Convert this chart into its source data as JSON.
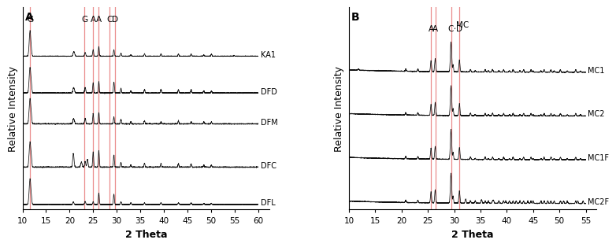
{
  "panel_A": {
    "label": "A",
    "x_min": 10,
    "x_max": 60,
    "xlabel": "2 Theta",
    "ylabel": "Relative Intensity",
    "vlines_A": [
      11.6,
      23.2,
      25.0,
      26.2,
      28.4,
      29.6
    ],
    "vline_labels_A": [
      "G",
      "G",
      "A",
      "A",
      "C",
      "D"
    ],
    "samples": [
      "KA1",
      "DFD",
      "DFM",
      "DFC",
      "DFL"
    ],
    "offsets": [
      4.8,
      3.6,
      2.6,
      1.2,
      0.0
    ],
    "xticks": [
      10,
      15,
      20,
      25,
      30,
      35,
      40,
      45,
      50,
      55,
      60
    ]
  },
  "panel_B": {
    "label": "B",
    "x_min": 10,
    "x_max": 55,
    "xlabel": "2 Theta",
    "ylabel": "Relative Intensity",
    "vlines_B": [
      25.6,
      26.4,
      29.4,
      31.0
    ],
    "vline_labels_B": [
      "A",
      "A",
      "C",
      "D"
    ],
    "samples": [
      "MC1",
      "MC2",
      "MC1F",
      "MC2F"
    ],
    "offsets": [
      3.6,
      2.4,
      1.2,
      0.0
    ],
    "xticks": [
      10,
      15,
      20,
      25,
      30,
      35,
      40,
      45,
      50,
      55
    ]
  },
  "vline_color": "#E88080",
  "line_color": "#111111",
  "background_color": "#ffffff",
  "label_fontsize": 7.5,
  "axis_label_fontsize": 9,
  "tick_fontsize": 7.5,
  "sample_label_fontsize": 7,
  "panel_label_fontsize": 10
}
